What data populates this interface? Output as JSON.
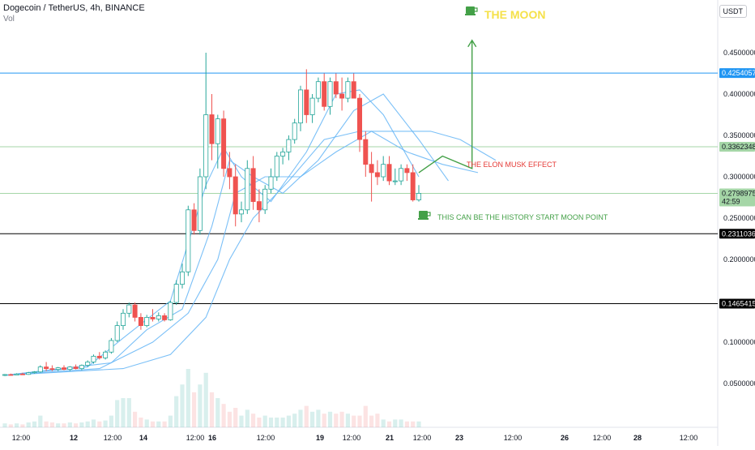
{
  "header": {
    "title": "Dogecoin / TetherUS, 4h, BINANCE",
    "volume_label": "Vol",
    "currency_button": "USDT"
  },
  "chart_data": {
    "type": "candlestick",
    "x_ticks": [
      "12:00",
      "12",
      "12:00",
      "14",
      "12:00",
      "16",
      "12:00",
      "19",
      "12:00",
      "21",
      "12:00",
      "23",
      "12:00",
      "26",
      "12:00",
      "28",
      "12:00"
    ],
    "y_ticks": [
      "0.4500000",
      "0.4000000",
      "0.3500000",
      "0.3000000",
      "0.2500000",
      "0.2000000",
      "0.1000000",
      "0.0500000"
    ],
    "y_ticks_partial": [
      "0.1500000"
    ],
    "ylim": [
      0.0,
      0.48
    ],
    "candles": [
      {
        "o": 0.06,
        "h": 0.0615,
        "l": 0.059,
        "c": 0.0608
      },
      {
        "o": 0.0608,
        "h": 0.062,
        "l": 0.0595,
        "c": 0.0602
      },
      {
        "o": 0.0602,
        "h": 0.0625,
        "l": 0.0598,
        "c": 0.0615
      },
      {
        "o": 0.0615,
        "h": 0.063,
        "l": 0.0605,
        "c": 0.061
      },
      {
        "o": 0.061,
        "h": 0.064,
        "l": 0.0605,
        "c": 0.063
      },
      {
        "o": 0.063,
        "h": 0.065,
        "l": 0.062,
        "c": 0.064
      },
      {
        "o": 0.064,
        "h": 0.072,
        "l": 0.063,
        "c": 0.07
      },
      {
        "o": 0.07,
        "h": 0.076,
        "l": 0.065,
        "c": 0.068
      },
      {
        "o": 0.068,
        "h": 0.072,
        "l": 0.065,
        "c": 0.067
      },
      {
        "o": 0.067,
        "h": 0.07,
        "l": 0.065,
        "c": 0.069
      },
      {
        "o": 0.069,
        "h": 0.072,
        "l": 0.066,
        "c": 0.067
      },
      {
        "o": 0.067,
        "h": 0.071,
        "l": 0.065,
        "c": 0.07
      },
      {
        "o": 0.07,
        "h": 0.073,
        "l": 0.067,
        "c": 0.068
      },
      {
        "o": 0.068,
        "h": 0.073,
        "l": 0.066,
        "c": 0.072
      },
      {
        "o": 0.072,
        "h": 0.078,
        "l": 0.07,
        "c": 0.076
      },
      {
        "o": 0.076,
        "h": 0.085,
        "l": 0.074,
        "c": 0.083
      },
      {
        "o": 0.083,
        "h": 0.088,
        "l": 0.079,
        "c": 0.081
      },
      {
        "o": 0.081,
        "h": 0.09,
        "l": 0.079,
        "c": 0.088
      },
      {
        "o": 0.088,
        "h": 0.105,
        "l": 0.086,
        "c": 0.102
      },
      {
        "o": 0.102,
        "h": 0.125,
        "l": 0.1,
        "c": 0.12
      },
      {
        "o": 0.12,
        "h": 0.14,
        "l": 0.115,
        "c": 0.135
      },
      {
        "o": 0.135,
        "h": 0.148,
        "l": 0.13,
        "c": 0.145
      },
      {
        "o": 0.145,
        "h": 0.148,
        "l": 0.125,
        "c": 0.13
      },
      {
        "o": 0.13,
        "h": 0.135,
        "l": 0.115,
        "c": 0.12
      },
      {
        "o": 0.12,
        "h": 0.133,
        "l": 0.118,
        "c": 0.13
      },
      {
        "o": 0.13,
        "h": 0.14,
        "l": 0.125,
        "c": 0.128
      },
      {
        "o": 0.128,
        "h": 0.136,
        "l": 0.125,
        "c": 0.132
      },
      {
        "o": 0.132,
        "h": 0.135,
        "l": 0.125,
        "c": 0.127
      },
      {
        "o": 0.127,
        "h": 0.15,
        "l": 0.126,
        "c": 0.148
      },
      {
        "o": 0.148,
        "h": 0.175,
        "l": 0.145,
        "c": 0.17
      },
      {
        "o": 0.17,
        "h": 0.195,
        "l": 0.165,
        "c": 0.185
      },
      {
        "o": 0.185,
        "h": 0.265,
        "l": 0.18,
        "c": 0.26
      },
      {
        "o": 0.26,
        "h": 0.268,
        "l": 0.23,
        "c": 0.235
      },
      {
        "o": 0.235,
        "h": 0.31,
        "l": 0.23,
        "c": 0.3
      },
      {
        "o": 0.3,
        "h": 0.45,
        "l": 0.285,
        "c": 0.375
      },
      {
        "o": 0.375,
        "h": 0.4,
        "l": 0.32,
        "c": 0.34
      },
      {
        "o": 0.34,
        "h": 0.375,
        "l": 0.31,
        "c": 0.37
      },
      {
        "o": 0.37,
        "h": 0.38,
        "l": 0.3,
        "c": 0.31
      },
      {
        "o": 0.31,
        "h": 0.33,
        "l": 0.285,
        "c": 0.3
      },
      {
        "o": 0.3,
        "h": 0.315,
        "l": 0.24,
        "c": 0.255
      },
      {
        "o": 0.255,
        "h": 0.27,
        "l": 0.245,
        "c": 0.26
      },
      {
        "o": 0.26,
        "h": 0.32,
        "l": 0.255,
        "c": 0.31
      },
      {
        "o": 0.31,
        "h": 0.325,
        "l": 0.26,
        "c": 0.27
      },
      {
        "o": 0.27,
        "h": 0.285,
        "l": 0.245,
        "c": 0.26
      },
      {
        "o": 0.26,
        "h": 0.29,
        "l": 0.255,
        "c": 0.285
      },
      {
        "o": 0.285,
        "h": 0.31,
        "l": 0.28,
        "c": 0.3
      },
      {
        "o": 0.3,
        "h": 0.33,
        "l": 0.295,
        "c": 0.325
      },
      {
        "o": 0.325,
        "h": 0.335,
        "l": 0.315,
        "c": 0.33
      },
      {
        "o": 0.33,
        "h": 0.35,
        "l": 0.32,
        "c": 0.345
      },
      {
        "o": 0.345,
        "h": 0.37,
        "l": 0.34,
        "c": 0.365
      },
      {
        "o": 0.365,
        "h": 0.41,
        "l": 0.355,
        "c": 0.405
      },
      {
        "o": 0.405,
        "h": 0.43,
        "l": 0.365,
        "c": 0.375
      },
      {
        "o": 0.375,
        "h": 0.4,
        "l": 0.365,
        "c": 0.395
      },
      {
        "o": 0.395,
        "h": 0.42,
        "l": 0.39,
        "c": 0.415
      },
      {
        "o": 0.415,
        "h": 0.425,
        "l": 0.38,
        "c": 0.385
      },
      {
        "o": 0.385,
        "h": 0.42,
        "l": 0.375,
        "c": 0.415
      },
      {
        "o": 0.415,
        "h": 0.425,
        "l": 0.395,
        "c": 0.4
      },
      {
        "o": 0.4,
        "h": 0.42,
        "l": 0.38,
        "c": 0.395
      },
      {
        "o": 0.395,
        "h": 0.42,
        "l": 0.39,
        "c": 0.415
      },
      {
        "o": 0.415,
        "h": 0.425,
        "l": 0.395,
        "c": 0.395
      },
      {
        "o": 0.395,
        "h": 0.4,
        "l": 0.33,
        "c": 0.345
      },
      {
        "o": 0.345,
        "h": 0.355,
        "l": 0.3,
        "c": 0.315
      },
      {
        "o": 0.315,
        "h": 0.33,
        "l": 0.27,
        "c": 0.305
      },
      {
        "o": 0.305,
        "h": 0.32,
        "l": 0.29,
        "c": 0.3
      },
      {
        "o": 0.3,
        "h": 0.325,
        "l": 0.295,
        "c": 0.315
      },
      {
        "o": 0.315,
        "h": 0.325,
        "l": 0.29,
        "c": 0.295
      },
      {
        "o": 0.295,
        "h": 0.31,
        "l": 0.29,
        "c": 0.295
      },
      {
        "o": 0.295,
        "h": 0.315,
        "l": 0.29,
        "c": 0.31
      },
      {
        "o": 0.31,
        "h": 0.315,
        "l": 0.295,
        "c": 0.305
      },
      {
        "o": 0.305,
        "h": 0.315,
        "l": 0.27,
        "c": 0.272
      },
      {
        "o": 0.272,
        "h": 0.29,
        "l": 0.27,
        "c": 0.2799
      }
    ],
    "volume": [
      2,
      1.5,
      2,
      1.5,
      2.5,
      3,
      6,
      3,
      2.5,
      2,
      2,
      2.5,
      2,
      2.5,
      3,
      4,
      3,
      3.5,
      6,
      14,
      15,
      15,
      8,
      5,
      4,
      3,
      3,
      3,
      6,
      16,
      22,
      30,
      18,
      22,
      28,
      18,
      15,
      12,
      8,
      10,
      6,
      9,
      7,
      5,
      6,
      5,
      5,
      5,
      6,
      7,
      9,
      11,
      8,
      9,
      7,
      8,
      7,
      8,
      7,
      6,
      6,
      11,
      6,
      7,
      4,
      3,
      4,
      4,
      3,
      3,
      3
    ],
    "moving_averages": [
      [
        [
          0,
          0.06
        ],
        [
          14,
          0.07
        ],
        [
          20,
          0.105
        ],
        [
          28,
          0.15
        ],
        [
          34,
          0.29
        ],
        [
          37,
          0.335
        ],
        [
          40,
          0.3
        ],
        [
          45,
          0.27
        ],
        [
          51,
          0.33
        ],
        [
          56,
          0.4
        ],
        [
          60,
          0.405
        ],
        [
          64,
          0.375
        ],
        [
          70,
          0.3
        ]
      ],
      [
        [
          0,
          0.06
        ],
        [
          18,
          0.075
        ],
        [
          24,
          0.115
        ],
        [
          30,
          0.14
        ],
        [
          35,
          0.24
        ],
        [
          38,
          0.32
        ],
        [
          42,
          0.3
        ],
        [
          47,
          0.28
        ],
        [
          53,
          0.32
        ],
        [
          59,
          0.38
        ],
        [
          64,
          0.4
        ],
        [
          70,
          0.345
        ],
        [
          75,
          0.295
        ]
      ],
      [
        [
          0,
          0.06
        ],
        [
          16,
          0.068
        ],
        [
          25,
          0.1
        ],
        [
          31,
          0.135
        ],
        [
          36,
          0.2
        ],
        [
          39,
          0.28
        ],
        [
          44,
          0.3
        ],
        [
          50,
          0.3
        ],
        [
          56,
          0.33
        ],
        [
          62,
          0.355
        ],
        [
          68,
          0.33
        ],
        [
          74,
          0.315
        ],
        [
          80,
          0.305
        ]
      ],
      [
        [
          0,
          0.06
        ],
        [
          20,
          0.068
        ],
        [
          28,
          0.085
        ],
        [
          34,
          0.13
        ],
        [
          38,
          0.2
        ],
        [
          42,
          0.25
        ],
        [
          48,
          0.295
        ],
        [
          54,
          0.345
        ],
        [
          60,
          0.355
        ],
        [
          66,
          0.355
        ],
        [
          72,
          0.355
        ],
        [
          77,
          0.345
        ],
        [
          83,
          0.32
        ]
      ]
    ],
    "horizontal_lines": [
      {
        "price": 0.4254057,
        "label": "0.4254057",
        "color": "#2196f3"
      },
      {
        "price": 0.3362348,
        "label": "0.3362348",
        "color": "#a5d6a7"
      },
      {
        "price": 0.2798975,
        "label": "0.2798975",
        "color": "#a5d6a7",
        "countdown": "42:59"
      },
      {
        "price": 0.2311036,
        "label": "0.2311036",
        "color": "#000000"
      },
      {
        "price": 0.1465415,
        "label": "0.1465415",
        "color": "#000000"
      }
    ],
    "annotations": [
      {
        "text": "THE MOON",
        "color": "#f5e14a"
      },
      {
        "text": "THE ELON MUSK EFFECT",
        "color": "#e53935"
      },
      {
        "text": "THIS CAN BE THE HISTORY START MOON POINT",
        "color": "#43a047"
      }
    ],
    "projection_path": [
      [
        70,
        0.305
      ],
      [
        74,
        0.325
      ],
      [
        79,
        0.31
      ],
      [
        79,
        0.465
      ]
    ],
    "colors": {
      "up": "#26a69a",
      "down": "#ef5350",
      "ma": "#64b5f6",
      "arrow": "#43a047"
    }
  }
}
